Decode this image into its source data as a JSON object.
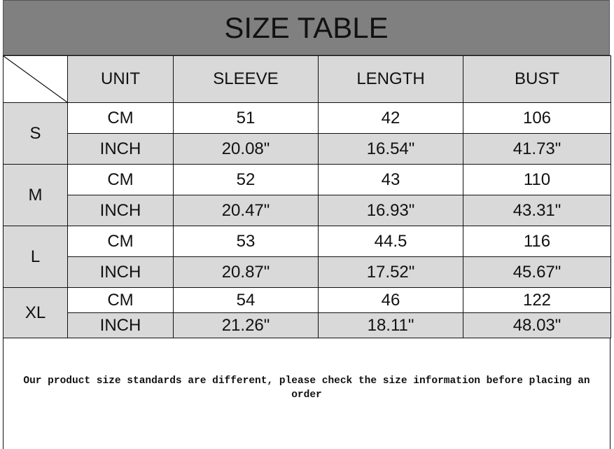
{
  "title": "SIZE TABLE",
  "headers": [
    "UNIT",
    "SLEEVE",
    "LENGTH",
    "BUST"
  ],
  "rows": [
    {
      "size": "S",
      "cm": {
        "unit": "CM",
        "sleeve": "51",
        "length": "42",
        "bust": "106"
      },
      "inch": {
        "unit": "INCH",
        "sleeve": "20.08\"",
        "length": "16.54\"",
        "bust": "41.73\""
      }
    },
    {
      "size": "M",
      "cm": {
        "unit": "CM",
        "sleeve": "52",
        "length": "43",
        "bust": "110"
      },
      "inch": {
        "unit": "INCH",
        "sleeve": "20.47\"",
        "length": "16.93\"",
        "bust": "43.31\""
      }
    },
    {
      "size": "L",
      "cm": {
        "unit": "CM",
        "sleeve": "53",
        "length": "44.5",
        "bust": "116"
      },
      "inch": {
        "unit": "INCH",
        "sleeve": "20.87\"",
        "length": "17.52\"",
        "bust": "45.67\""
      }
    },
    {
      "size": "XL",
      "cm": {
        "unit": "CM",
        "sleeve": "54",
        "length": "46",
        "bust": "122"
      },
      "inch": {
        "unit": "INCH",
        "sleeve": "21.26\"",
        "length": "18.11\"",
        "bust": "48.03\""
      }
    }
  ],
  "note": "Our product size standards are different, please check the size information before placing an order",
  "colors": {
    "title_bg": "#808080",
    "cell_gray": "#d9d9d9"
  }
}
